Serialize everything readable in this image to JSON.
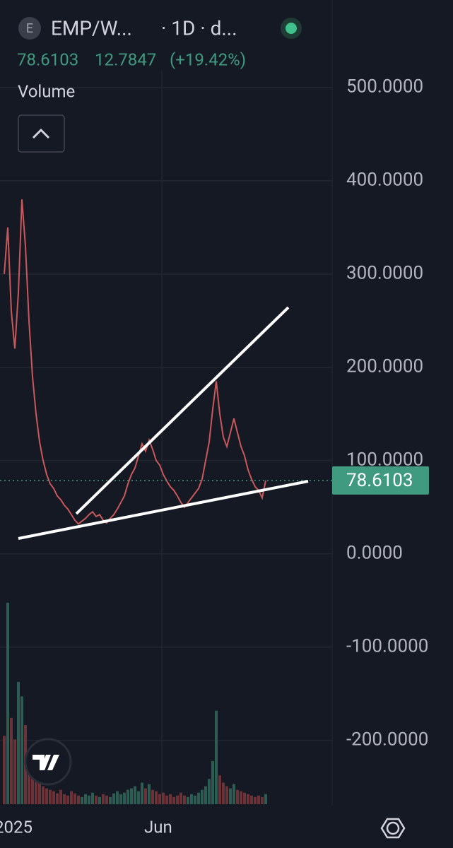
{
  "header": {
    "badge": "E",
    "symbol": "EMP/W...",
    "interval": "· 1D · d...",
    "price": "78.6103",
    "change": "12.7847",
    "change_pct": "(+19.42%)",
    "volume_label": "Volume"
  },
  "chart_data": {
    "type": "line",
    "color": "#c9585a",
    "up_color": "#3f9a7f",
    "values": [
      300,
      350,
      260,
      220,
      280,
      380,
      330,
      250,
      190,
      150,
      120,
      100,
      85,
      75,
      70,
      62,
      58,
      52,
      48,
      42,
      36,
      32,
      35,
      38,
      42,
      45,
      40,
      42,
      36,
      33,
      38,
      42,
      48,
      55,
      62,
      75,
      85,
      92,
      105,
      118,
      110,
      122,
      112,
      100,
      95,
      85,
      78,
      72,
      68,
      62,
      55,
      50,
      55,
      60,
      65,
      70,
      80,
      100,
      120,
      155,
      185,
      150,
      125,
      115,
      130,
      145,
      130,
      115,
      105,
      90,
      80,
      72,
      68,
      60,
      78.6103
    ],
    "volume": [
      95,
      280,
      120,
      90,
      170,
      150,
      110,
      60,
      45,
      40,
      30,
      25,
      22,
      20,
      18,
      15,
      20,
      14,
      12,
      18,
      15,
      12,
      10,
      14,
      12,
      16,
      12,
      10,
      14,
      12,
      10,
      15,
      18,
      14,
      16,
      20,
      22,
      25,
      18,
      30,
      22,
      28,
      20,
      18,
      14,
      16,
      12,
      14,
      10,
      12,
      16,
      12,
      10,
      14,
      12,
      16,
      20,
      25,
      35,
      60,
      130,
      40,
      30,
      25,
      22,
      28,
      20,
      18,
      16,
      14,
      12,
      10,
      12,
      10,
      14
    ],
    "ylim": [
      -270,
      518
    ],
    "yticks": [
      {
        "value": 500,
        "label": "500.0000"
      },
      {
        "value": 400,
        "label": "400.0000"
      },
      {
        "value": 300,
        "label": "300.0000"
      },
      {
        "value": 200,
        "label": "200.0000"
      },
      {
        "value": 100,
        "label": "100.0000"
      },
      {
        "value": 0,
        "label": "0.0000"
      },
      {
        "value": -100,
        "label": "-100.0000"
      },
      {
        "value": -200,
        "label": "-200.0000"
      }
    ],
    "x_labels": [
      "2025",
      "Jun"
    ],
    "last_price": {
      "value": 78.6103,
      "label": "78.6103"
    },
    "grid": true
  }
}
